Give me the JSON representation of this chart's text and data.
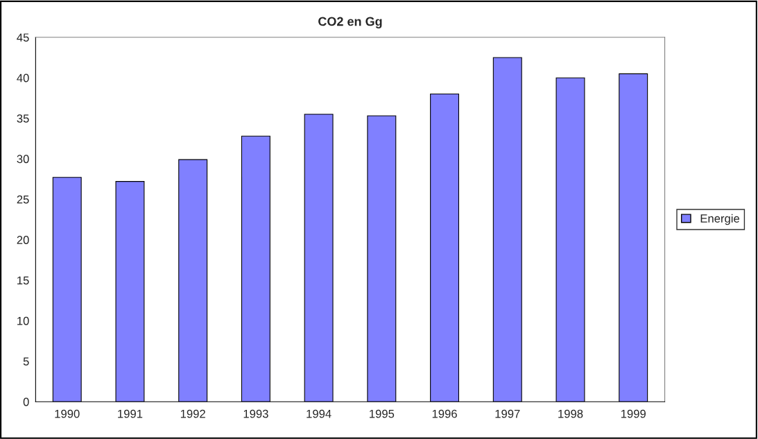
{
  "chart_data": {
    "type": "bar",
    "title": "CO2 en Gg",
    "categories": [
      "1990",
      "1991",
      "1992",
      "1993",
      "1994",
      "1995",
      "1996",
      "1997",
      "1998",
      "1999"
    ],
    "series": [
      {
        "name": "Energie",
        "color": "#8080ff",
        "values": [
          27.7,
          27.2,
          29.9,
          32.8,
          35.5,
          35.3,
          38.0,
          42.5,
          40.0,
          40.5
        ]
      }
    ],
    "ylim": [
      0,
      45
    ],
    "yticks": [
      0,
      5,
      10,
      15,
      20,
      25,
      30,
      35,
      40,
      45
    ],
    "grid": false,
    "legend": "right"
  }
}
